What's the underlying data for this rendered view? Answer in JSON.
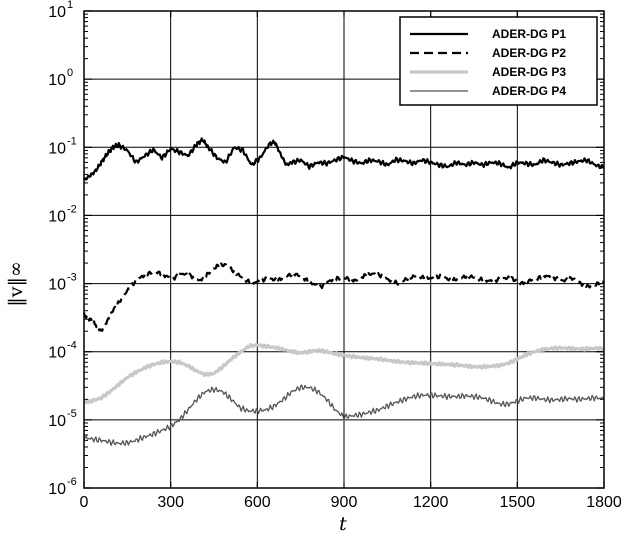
{
  "chart_data": {
    "type": "line",
    "xlabel": "t",
    "ylabel": "‖v‖∞",
    "xlim": [
      0,
      1800
    ],
    "ylim": [
      1e-06,
      10
    ],
    "yscale": "log",
    "grid": true,
    "legend_position": "top-right",
    "x_ticks": [
      "0",
      "300",
      "600",
      "900",
      "1200",
      "1500",
      "1800"
    ],
    "y_ticks": [
      {
        "base": "10",
        "exp": "-6"
      },
      {
        "base": "10",
        "exp": "-5"
      },
      {
        "base": "10",
        "exp": "-4"
      },
      {
        "base": "10",
        "exp": "-3"
      },
      {
        "base": "10",
        "exp": "-2"
      },
      {
        "base": "10",
        "exp": "-1"
      },
      {
        "base": "10",
        "exp": "0"
      },
      {
        "base": "10",
        "exp": "1"
      }
    ],
    "series": [
      {
        "name": "ADER-DG P1",
        "color": "#000000",
        "style": "solid",
        "x": [
          0,
          20,
          40,
          60,
          80,
          100,
          120,
          150,
          180,
          210,
          240,
          270,
          300,
          330,
          360,
          390,
          410,
          430,
          460,
          490,
          520,
          550,
          580,
          610,
          640,
          660,
          680,
          700,
          720,
          750,
          780,
          810,
          840,
          870,
          900,
          930,
          960,
          990,
          1020,
          1050,
          1080,
          1110,
          1140,
          1170,
          1200,
          1230,
          1260,
          1290,
          1320,
          1350,
          1380,
          1410,
          1440,
          1470,
          1500,
          1530,
          1560,
          1590,
          1620,
          1650,
          1680,
          1710,
          1740,
          1770,
          1800
        ],
        "y": [
          0.033,
          0.038,
          0.045,
          0.06,
          0.08,
          0.1,
          0.108,
          0.09,
          0.06,
          0.075,
          0.092,
          0.07,
          0.095,
          0.085,
          0.075,
          0.11,
          0.13,
          0.1,
          0.07,
          0.06,
          0.1,
          0.09,
          0.055,
          0.07,
          0.11,
          0.12,
          0.08,
          0.055,
          0.06,
          0.065,
          0.052,
          0.06,
          0.058,
          0.065,
          0.072,
          0.063,
          0.058,
          0.065,
          0.062,
          0.055,
          0.066,
          0.063,
          0.058,
          0.065,
          0.06,
          0.055,
          0.052,
          0.06,
          0.055,
          0.06,
          0.055,
          0.06,
          0.058,
          0.05,
          0.06,
          0.058,
          0.055,
          0.065,
          0.06,
          0.055,
          0.058,
          0.062,
          0.065,
          0.055,
          0.05
        ]
      },
      {
        "name": "ADER-DG P2",
        "color": "#000000",
        "style": "dashed",
        "x": [
          0,
          20,
          40,
          60,
          80,
          100,
          130,
          160,
          190,
          220,
          250,
          280,
          310,
          340,
          370,
          400,
          430,
          460,
          490,
          520,
          550,
          580,
          610,
          640,
          670,
          700,
          730,
          760,
          790,
          820,
          850,
          880,
          910,
          940,
          970,
          1000,
          1030,
          1060,
          1090,
          1120,
          1150,
          1180,
          1210,
          1240,
          1270,
          1300,
          1330,
          1360,
          1390,
          1420,
          1450,
          1480,
          1510,
          1540,
          1570,
          1600,
          1630,
          1660,
          1690,
          1720,
          1750,
          1780,
          1800
        ],
        "y": [
          0.00035,
          0.0003,
          0.00025,
          0.0002,
          0.00028,
          0.0004,
          0.0006,
          0.0009,
          0.0012,
          0.0014,
          0.0015,
          0.0013,
          0.0012,
          0.0014,
          0.0013,
          0.0011,
          0.0014,
          0.0018,
          0.0019,
          0.0015,
          0.0012,
          0.001,
          0.0011,
          0.0012,
          0.0011,
          0.0013,
          0.0014,
          0.0012,
          0.001,
          0.0009,
          0.0011,
          0.0012,
          0.0012,
          0.0011,
          0.0013,
          0.0014,
          0.0013,
          0.0011,
          0.001,
          0.0012,
          0.0013,
          0.0012,
          0.0012,
          0.0013,
          0.0011,
          0.0012,
          0.0013,
          0.0012,
          0.0011,
          0.0011,
          0.0012,
          0.0012,
          0.001,
          0.0011,
          0.0012,
          0.0013,
          0.0012,
          0.0011,
          0.0012,
          0.001,
          0.0009,
          0.001,
          0.0011
        ]
      },
      {
        "name": "ADER-DG P3",
        "color": "#c8c8c8",
        "style": "solid",
        "x": [
          0,
          30,
          60,
          90,
          120,
          150,
          180,
          210,
          240,
          270,
          300,
          330,
          360,
          390,
          420,
          450,
          480,
          510,
          540,
          570,
          600,
          630,
          660,
          690,
          720,
          750,
          780,
          810,
          840,
          870,
          900,
          930,
          960,
          990,
          1020,
          1050,
          1080,
          1110,
          1140,
          1170,
          1200,
          1230,
          1260,
          1290,
          1320,
          1350,
          1380,
          1410,
          1440,
          1470,
          1500,
          1530,
          1560,
          1590,
          1620,
          1650,
          1680,
          1710,
          1740,
          1770,
          1800
        ],
        "y": [
          1.8e-05,
          1.9e-05,
          2.1e-05,
          2.6e-05,
          3.3e-05,
          4.2e-05,
          5e-05,
          5.8e-05,
          6.5e-05,
          7e-05,
          7.2e-05,
          7e-05,
          6.2e-05,
          5.2e-05,
          4.6e-05,
          4.8e-05,
          6e-05,
          7.8e-05,
          9.8e-05,
          0.00012,
          0.000125,
          0.00012,
          0.000115,
          0.000108,
          0.0001,
          9.6e-05,
          0.0001,
          0.000105,
          0.0001,
          9.3e-05,
          8.8e-05,
          8.5e-05,
          8.2e-05,
          8e-05,
          7.8e-05,
          7.5e-05,
          7.2e-05,
          7e-05,
          6.9e-05,
          6.8e-05,
          6.7e-05,
          6.6e-05,
          6.5e-05,
          6.4e-05,
          6.2e-05,
          6e-05,
          6e-05,
          6.1e-05,
          6.3e-05,
          6.8e-05,
          7.8e-05,
          9e-05,
          0.0001,
          0.000108,
          0.000112,
          0.000113,
          0.000112,
          0.00011,
          0.00011,
          0.000112,
          0.000112
        ]
      },
      {
        "name": "ADER-DG P4",
        "color": "#555555",
        "style": "solid",
        "x": [
          0,
          30,
          60,
          90,
          120,
          150,
          180,
          210,
          240,
          270,
          300,
          330,
          360,
          390,
          420,
          450,
          480,
          510,
          540,
          570,
          600,
          630,
          660,
          690,
          720,
          750,
          780,
          810,
          840,
          870,
          900,
          930,
          960,
          990,
          1020,
          1050,
          1080,
          1110,
          1140,
          1170,
          1200,
          1230,
          1260,
          1290,
          1320,
          1350,
          1380,
          1410,
          1440,
          1470,
          1500,
          1530,
          1560,
          1590,
          1620,
          1650,
          1680,
          1710,
          1740,
          1770,
          1800
        ],
        "y": [
          5.5e-06,
          5.2e-06,
          5e-06,
          4.7e-06,
          4.5e-06,
          4.6e-06,
          5e-06,
          5.6e-06,
          6.2e-06,
          7e-06,
          8e-06,
          1e-05,
          1.4e-05,
          2e-05,
          2.6e-05,
          2.8e-05,
          2.6e-05,
          2e-05,
          1.5e-05,
          1.35e-05,
          1.35e-05,
          1.4e-05,
          1.6e-05,
          2e-05,
          2.6e-05,
          3e-05,
          3e-05,
          2.6e-05,
          2e-05,
          1.4e-05,
          1.1e-05,
          1.15e-05,
          1.2e-05,
          1.3e-05,
          1.4e-05,
          1.6e-05,
          1.8e-05,
          2e-05,
          2.2e-05,
          2.3e-05,
          2.3e-05,
          2.25e-05,
          2.2e-05,
          2.2e-05,
          2.25e-05,
          2.2e-05,
          2.1e-05,
          1.9e-05,
          1.7e-05,
          1.7e-05,
          1.9e-05,
          2.1e-05,
          2.1e-05,
          2e-05,
          1.95e-05,
          2e-05,
          2.05e-05,
          2e-05,
          2.05e-05,
          2.1e-05,
          2.05e-05
        ]
      }
    ]
  }
}
